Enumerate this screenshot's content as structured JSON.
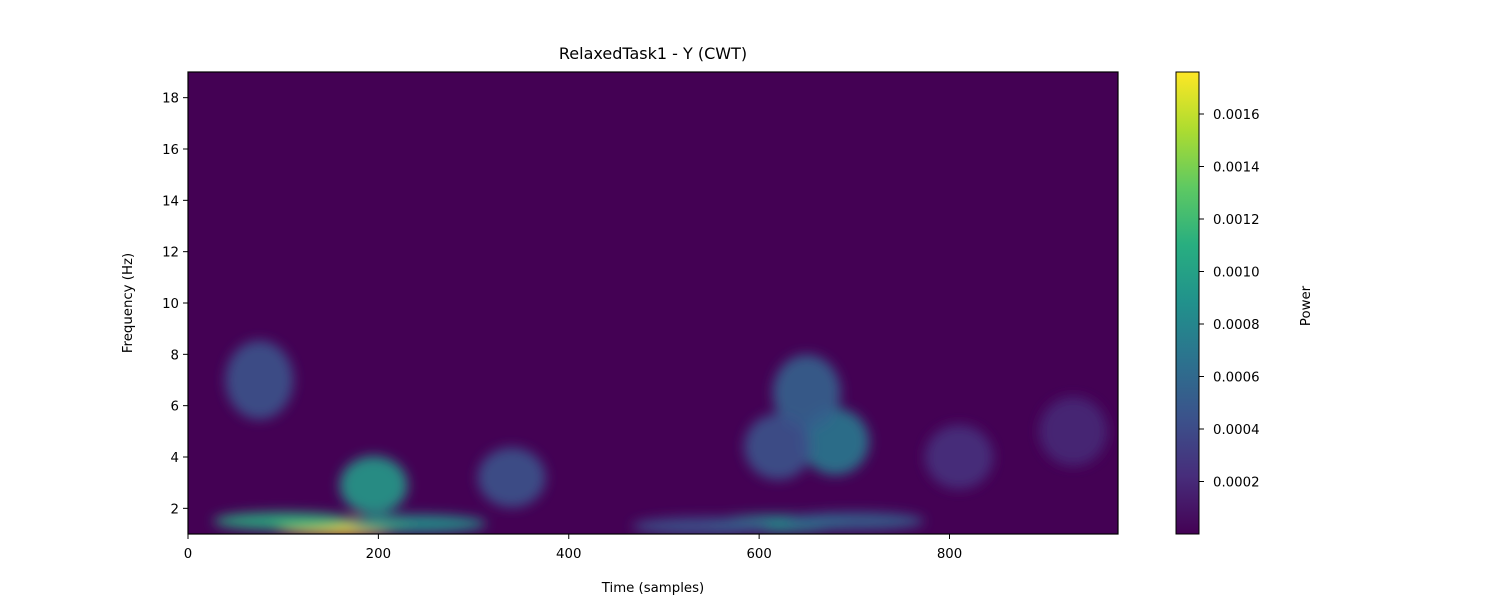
{
  "chart_data": {
    "type": "heatmap",
    "title": "RelaxedTask1 - Y (CWT)",
    "xlabel": "Time (samples)",
    "ylabel": "Frequency (Hz)",
    "xlim": [
      0,
      977
    ],
    "ylim": [
      1,
      19
    ],
    "xticks": [
      0,
      200,
      400,
      600,
      800
    ],
    "yticks": [
      2,
      4,
      6,
      8,
      10,
      12,
      14,
      16,
      18
    ],
    "colormap": "viridis",
    "colorbar": {
      "label": "Power",
      "range": [
        0,
        0.00176
      ],
      "ticks": [
        "0.0002",
        "0.0004",
        "0.0006",
        "0.0008",
        "0.0010",
        "0.0012",
        "0.0014",
        "0.0016"
      ]
    },
    "hotspots": [
      {
        "time": 160,
        "freq": 1.3,
        "power": 0.00175
      },
      {
        "time": 100,
        "freq": 1.5,
        "power": 0.0011
      },
      {
        "time": 240,
        "freq": 1.4,
        "power": 0.0009
      },
      {
        "time": 195,
        "freq": 2.9,
        "power": 0.00095
      },
      {
        "time": 620,
        "freq": 1.4,
        "power": 0.00085
      },
      {
        "time": 700,
        "freq": 1.5,
        "power": 0.00055
      },
      {
        "time": 540,
        "freq": 1.3,
        "power": 0.00045
      },
      {
        "time": 680,
        "freq": 4.6,
        "power": 0.0007
      },
      {
        "time": 650,
        "freq": 6.5,
        "power": 0.00055
      },
      {
        "time": 620,
        "freq": 4.4,
        "power": 0.00045
      },
      {
        "time": 75,
        "freq": 7.0,
        "power": 0.00045
      },
      {
        "time": 340,
        "freq": 3.2,
        "power": 0.00045
      },
      {
        "time": 810,
        "freq": 4.0,
        "power": 0.00025
      },
      {
        "time": 930,
        "freq": 5.0,
        "power": 0.0002
      }
    ]
  }
}
